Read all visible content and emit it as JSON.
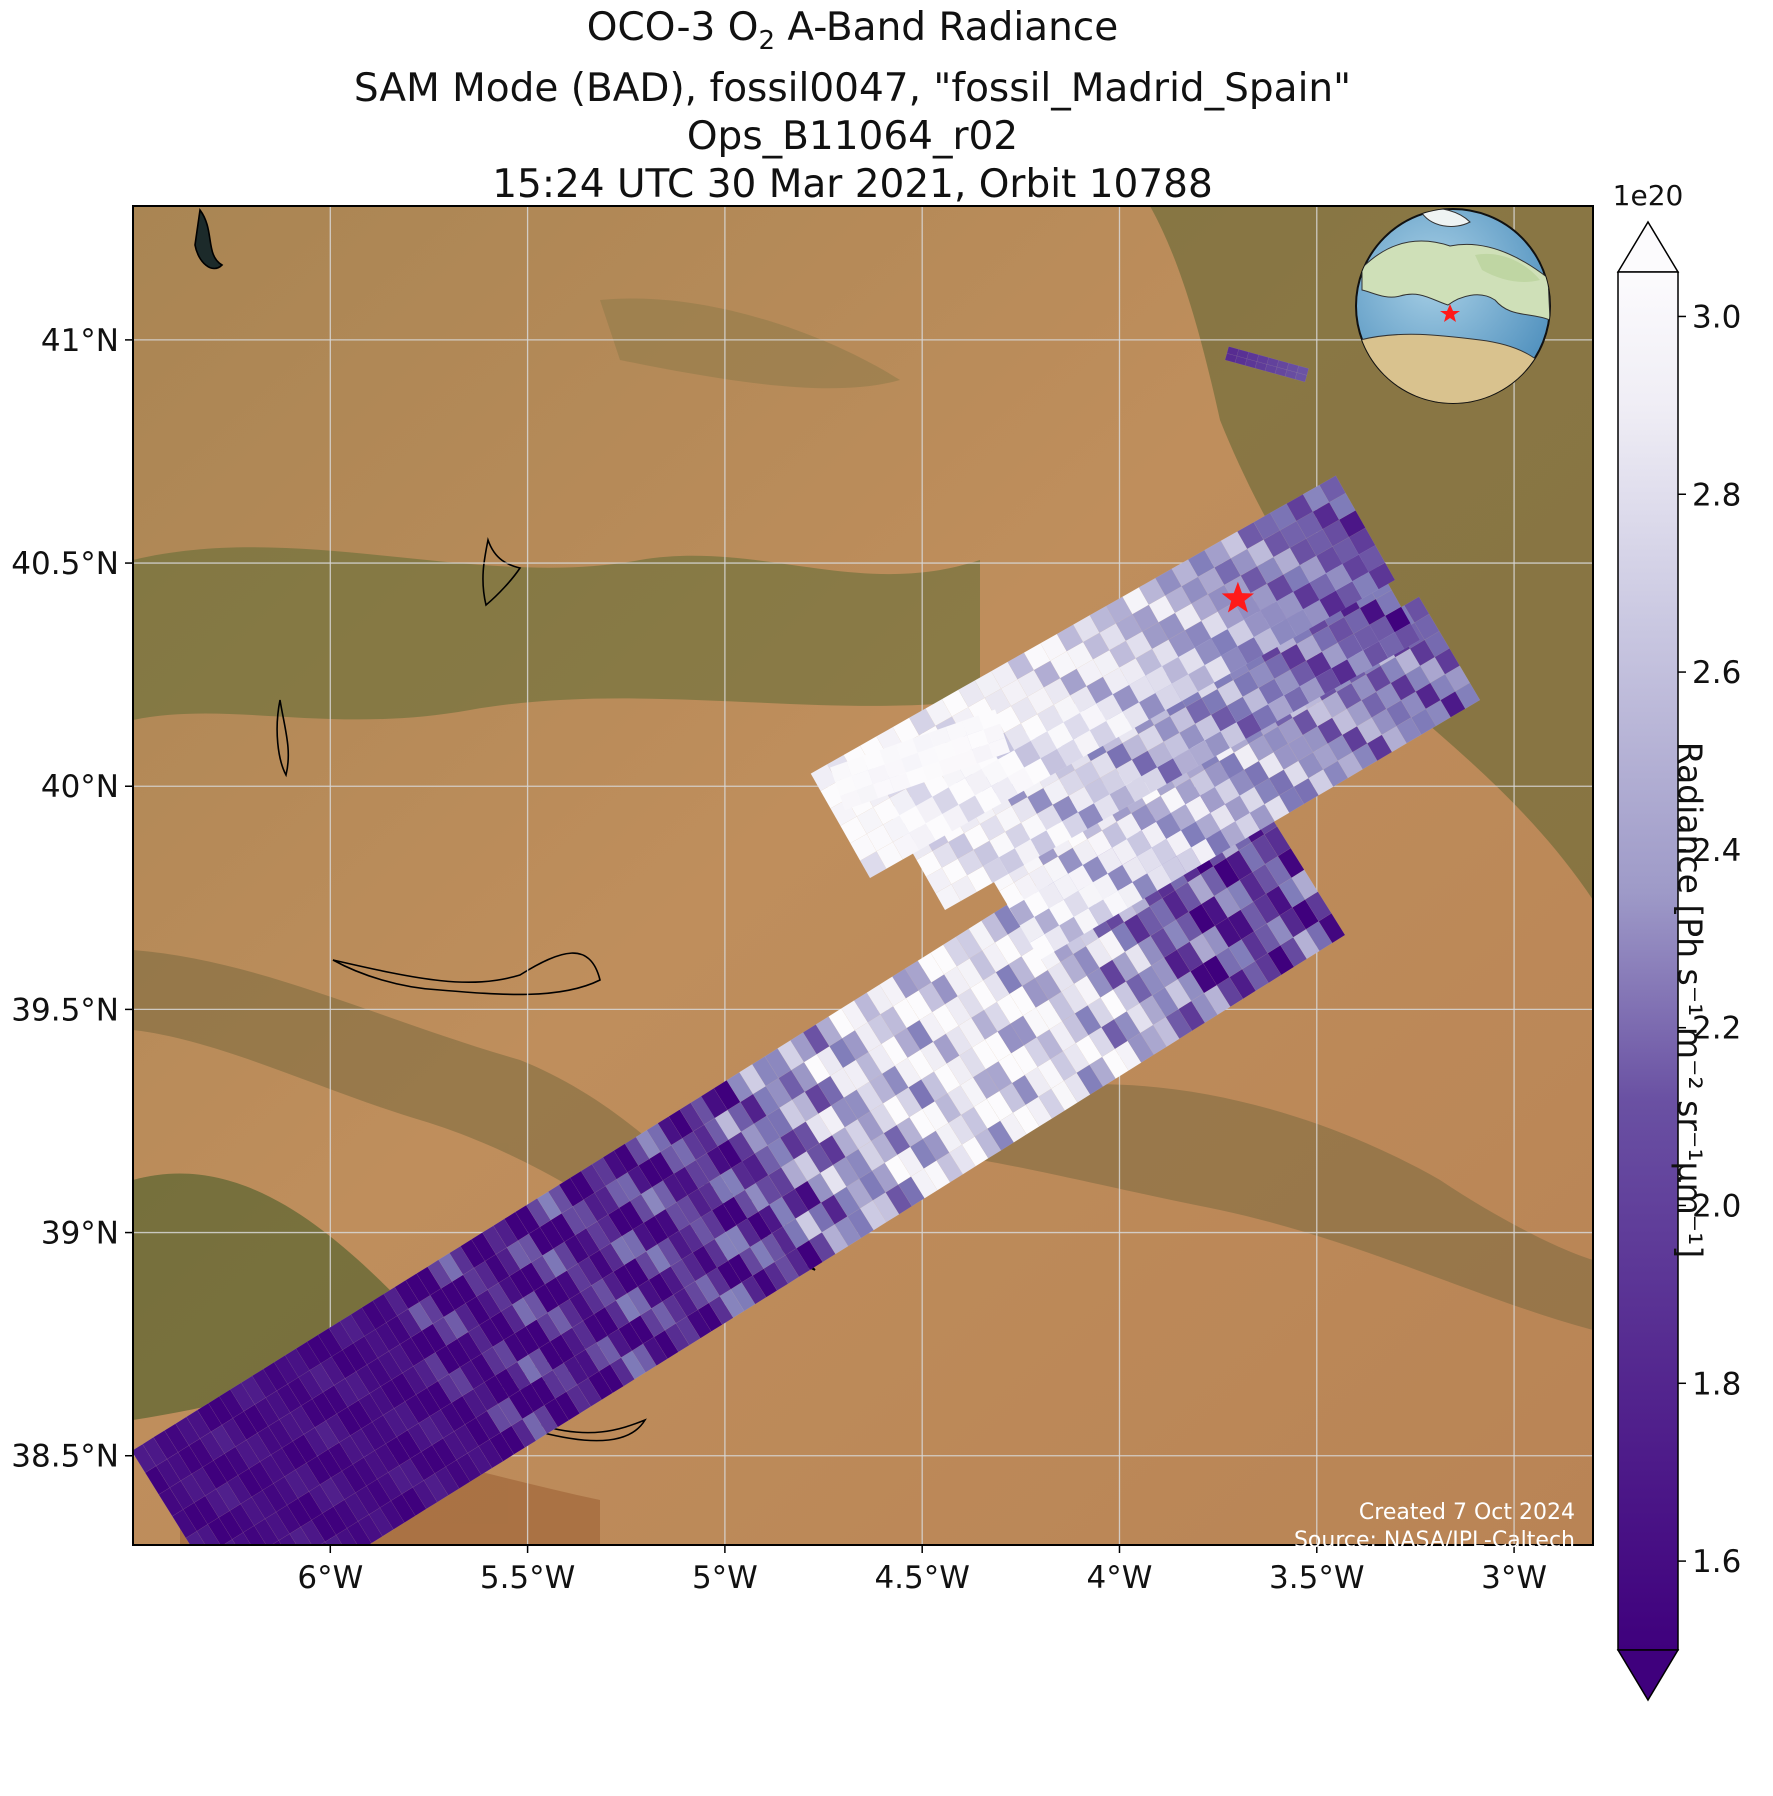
{
  "title": {
    "line1_prefix": "OCO-3 O",
    "line1_sub": "2",
    "line1_suffix": " A-Band Radiance",
    "line2": "SAM Mode (BAD), fossil0047, \"fossil_Madrid_Spain\"",
    "line3": "Ops_B11064_r02",
    "line4": "15:24 UTC 30 Mar 2021, Orbit 10788"
  },
  "map": {
    "lon_range": [
      -6.5,
      -2.8
    ],
    "lat_range": [
      38.3,
      41.3
    ],
    "lon_ticks": [
      -6.0,
      -5.5,
      -5.0,
      -4.5,
      -4.0,
      -3.5,
      -3.0
    ],
    "lon_tick_labels": [
      "6°W",
      "5.5°W",
      "5°W",
      "4.5°W",
      "4°W",
      "3.5°W",
      "3°W"
    ],
    "lat_ticks": [
      38.5,
      39.0,
      39.5,
      40.0,
      40.5,
      41.0
    ],
    "lat_tick_labels": [
      "38.5°N",
      "39°N",
      "39.5°N",
      "40°N",
      "40.5°N",
      "41°N"
    ],
    "target_marker": {
      "lon": -3.7,
      "lat": 40.42,
      "color": "#ff1a1a"
    },
    "basemap_colors": {
      "land": "#b98a58",
      "dark_land": "#6e6a3a",
      "water": "#1c2a2a"
    }
  },
  "colorbar": {
    "min": 1.5,
    "max": 3.05,
    "ticks": [
      1.6,
      1.8,
      2.0,
      2.2,
      2.4,
      2.6,
      2.8,
      3.0
    ],
    "tick_labels": [
      "1.6",
      "1.8",
      "2.0",
      "2.2",
      "2.4",
      "2.6",
      "2.8",
      "3.0"
    ],
    "scale_label": "1e20",
    "label": "Radiance [Ph s⁻¹ m⁻² sr⁻¹μm⁻¹]",
    "colormap": "Purples_r",
    "color_low": "#3f007d",
    "color_high": "#fcfbfd"
  },
  "credits": {
    "created": "Created 7 Oct 2024",
    "source": "Source: NASA/JPL-Caltech"
  }
}
